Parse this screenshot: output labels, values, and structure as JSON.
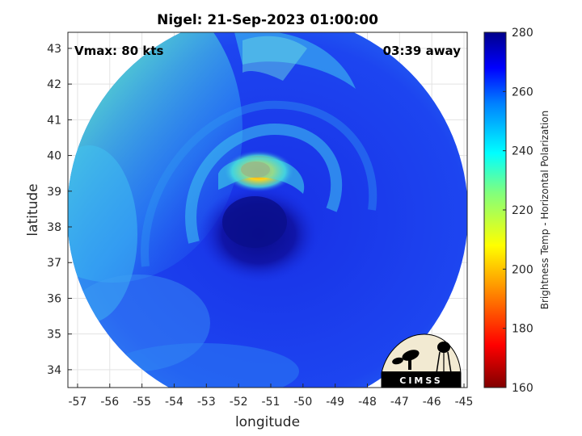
{
  "chart_data": {
    "type": "heatmap",
    "title": "Nigel: 21-Sep-2023 01:00:00",
    "xlabel": "longitude",
    "ylabel": "latitude",
    "xlim": [
      -57.3,
      -44.9
    ],
    "ylim": [
      33.5,
      43.45
    ],
    "x_ticks": [
      -57,
      -56,
      -55,
      -54,
      -53,
      -52,
      -51,
      -50,
      -49,
      -48,
      -47,
      -46,
      -45
    ],
    "y_ticks": [
      34,
      35,
      36,
      37,
      38,
      39,
      40,
      41,
      42,
      43
    ],
    "grid": true,
    "annotations": {
      "vmax": "Vmax: 80 kts",
      "time_away": "03:39 away"
    },
    "colorbar": {
      "label": "Brightness Temp - Horizontal Polarization",
      "range": [
        160,
        280
      ],
      "ticks": [
        160,
        180,
        200,
        220,
        240,
        260,
        280
      ],
      "colormap": "jet"
    },
    "storm_center": {
      "lon": -51.3,
      "lat": 38.1
    },
    "coldest_region": {
      "lon": -51.6,
      "lat": 39.5,
      "value": 185
    },
    "logo_text": "CIMSS"
  },
  "colors": {
    "background_field": "#1a2fe8",
    "eye_core": "#0a0f8c",
    "outer_band": "#3fd6f0",
    "northwest_edge": "#b5f25a",
    "warm_arc": "#ff8c1a"
  }
}
